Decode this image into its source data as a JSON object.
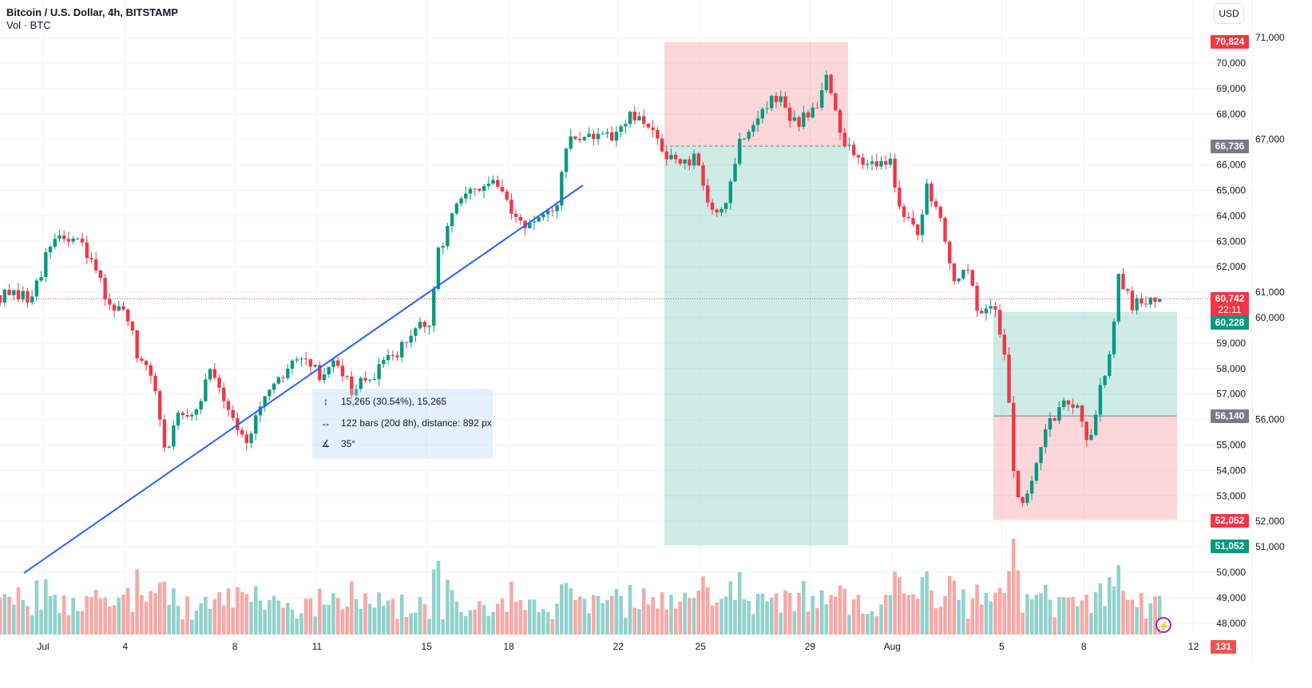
{
  "header": {
    "title": "Bitcoin / U.S. Dollar, 4h, BITSTAMP",
    "volume_label": "Vol · BTC",
    "currency_button": "USD"
  },
  "colors": {
    "up": "#089981",
    "down": "#f23645",
    "vol_up": "#92d2cc",
    "vol_down": "#f7a9a7",
    "trendline": "#2962ff",
    "gray_tag": "#787b86"
  },
  "measure_tooltip": {
    "price_range": "15,265 (30.54%), 15,265",
    "bars_range": "122 bars (20d 8h), distance: 892 px",
    "angle": "35°"
  },
  "price_tags": {
    "short_stop": "70,824",
    "short_entry": "66,736",
    "last_price": "60,742",
    "countdown": "22:11",
    "long_target": "60,228",
    "long_entry": "56,140",
    "long_stop": "52,052",
    "short_target": "51,052",
    "volume": "131"
  },
  "chart_data": {
    "type": "candlestick",
    "title": "Bitcoin / U.S. Dollar, 4h, BITSTAMP",
    "x_unit": "days since Jul 1",
    "bar_interval_days": 0.16667,
    "ylim": [
      47600,
      71500
    ],
    "y_ticks": [
      "71,000",
      "70,000",
      "69,000",
      "68,000",
      "67,000",
      "66,000",
      "65,000",
      "64,000",
      "63,000",
      "62,000",
      "61,000",
      "60,000",
      "59,000",
      "58,000",
      "57,000",
      "56,000",
      "55,000",
      "54,000",
      "53,000",
      "52,000",
      "51,000",
      "50,000",
      "49,000",
      "48,000"
    ],
    "y_tick_values": [
      71000,
      70000,
      69000,
      68000,
      67000,
      66000,
      65000,
      64000,
      63000,
      62000,
      61000,
      60000,
      59000,
      58000,
      57000,
      56000,
      55000,
      54000,
      53000,
      52000,
      51000,
      50000,
      49000,
      48000
    ],
    "x_ticks": [
      {
        "label": "Jul",
        "day": 0
      },
      {
        "label": "4",
        "day": 3
      },
      {
        "label": "8",
        "day": 7
      },
      {
        "label": "11",
        "day": 10
      },
      {
        "label": "15",
        "day": 14
      },
      {
        "label": "18",
        "day": 17
      },
      {
        "label": "22",
        "day": 21
      },
      {
        "label": "25",
        "day": 24
      },
      {
        "label": "29",
        "day": 28
      },
      {
        "label": "Aug",
        "day": 31
      },
      {
        "label": "5",
        "day": 35
      },
      {
        "label": "8",
        "day": 38
      },
      {
        "label": "12",
        "day": 42
      }
    ],
    "close_path": [
      [
        -1.57,
        60880
      ],
      [
        -0.55,
        60720
      ],
      [
        0.03,
        62130
      ],
      [
        0.47,
        63230
      ],
      [
        1.34,
        62900
      ],
      [
        1.92,
        61800
      ],
      [
        2.36,
        60720
      ],
      [
        3.09,
        59940
      ],
      [
        3.53,
        58060
      ],
      [
        3.97,
        57740
      ],
      [
        4.55,
        54450
      ],
      [
        4.84,
        56180
      ],
      [
        5.57,
        56490
      ],
      [
        6.15,
        58060
      ],
      [
        7.03,
        55860
      ],
      [
        7.46,
        55240
      ],
      [
        8.05,
        56650
      ],
      [
        9.5,
        58680
      ],
      [
        10.09,
        57590
      ],
      [
        10.67,
        58530
      ],
      [
        11.25,
        57120
      ],
      [
        12.13,
        57740
      ],
      [
        13.15,
        59000
      ],
      [
        14.17,
        59940
      ],
      [
        14.46,
        62760
      ],
      [
        15.19,
        64640
      ],
      [
        15.92,
        64950
      ],
      [
        16.5,
        65420
      ],
      [
        17.08,
        64010
      ],
      [
        17.81,
        63700
      ],
      [
        18.69,
        64010
      ],
      [
        19.13,
        66990
      ],
      [
        20.0,
        67150
      ],
      [
        20.87,
        66990
      ],
      [
        21.46,
        67930
      ],
      [
        22.19,
        67300
      ],
      [
        22.62,
        66680
      ],
      [
        23.21,
        65900
      ],
      [
        23.79,
        66210
      ],
      [
        24.37,
        64170
      ],
      [
        24.96,
        64640
      ],
      [
        25.39,
        66830
      ],
      [
        26.12,
        67930
      ],
      [
        26.85,
        68710
      ],
      [
        27.43,
        67620
      ],
      [
        28.16,
        68240
      ],
      [
        28.6,
        69500
      ],
      [
        28.89,
        68090
      ],
      [
        29.18,
        66830
      ],
      [
        29.77,
        66360
      ],
      [
        30.5,
        66050
      ],
      [
        30.93,
        66210
      ],
      [
        31.37,
        64010
      ],
      [
        31.95,
        63070
      ],
      [
        32.24,
        65270
      ],
      [
        32.68,
        64330
      ],
      [
        33.27,
        61500
      ],
      [
        33.85,
        61660
      ],
      [
        34.14,
        60250
      ],
      [
        34.72,
        60720
      ],
      [
        35.16,
        58210
      ],
      [
        35.45,
        53670
      ],
      [
        35.74,
        52410
      ],
      [
        36.18,
        53980
      ],
      [
        36.62,
        55550
      ],
      [
        37.2,
        56650
      ],
      [
        37.78,
        56800
      ],
      [
        38.22,
        54760
      ],
      [
        38.51,
        57120
      ],
      [
        38.95,
        58530
      ],
      [
        39.24,
        61660
      ],
      [
        39.83,
        60410
      ],
      [
        40.41,
        60810
      ],
      [
        40.87,
        60742
      ]
    ],
    "last_price": 60742,
    "trendline": {
      "start": [
        -0.7,
        49970
      ],
      "end": [
        19.71,
        65200
      ]
    },
    "short_position": {
      "start_day": 22.68,
      "end_day": 29.39,
      "entry": 66736,
      "stop": 70824,
      "target": 51052
    },
    "long_position": {
      "start_day": 34.69,
      "end_day": 41.4,
      "entry": 56140,
      "target": 60228,
      "stop": 52052
    },
    "volume_last": 131
  }
}
